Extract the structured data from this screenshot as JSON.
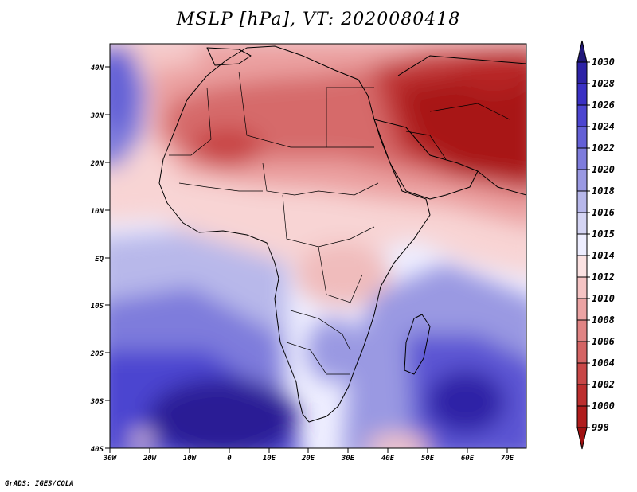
{
  "title": "MSLP [hPa], VT: 2020080418",
  "credit": "GrADS: IGES/COLA",
  "lat_labels": [
    "40N",
    "30N",
    "20N",
    "10N",
    "EQ",
    "10S",
    "20S",
    "30S",
    "40S"
  ],
  "lon_labels": [
    "30W",
    "20W",
    "10W",
    "0",
    "10E",
    "20E",
    "30E",
    "40E",
    "50E",
    "60E",
    "70E"
  ],
  "colorbar": {
    "levels": [
      "1030",
      "1028",
      "1026",
      "1024",
      "1022",
      "1020",
      "1018",
      "1016",
      "1015",
      "1014",
      "1012",
      "1010",
      "1008",
      "1006",
      "1004",
      "1002",
      "1000",
      "998"
    ],
    "colors": [
      "#21187a",
      "#2d22a6",
      "#3a30c4",
      "#4c45d0",
      "#6460d6",
      "#7e7cdc",
      "#9a99e2",
      "#b7b7ea",
      "#d4d4f3",
      "#eeeeff",
      "#fbe2e2",
      "#f5c4c4",
      "#eba3a3",
      "#e08484",
      "#d46464",
      "#c84747",
      "#bc2e2e",
      "#b01c1c",
      "#a01010"
    ]
  }
}
